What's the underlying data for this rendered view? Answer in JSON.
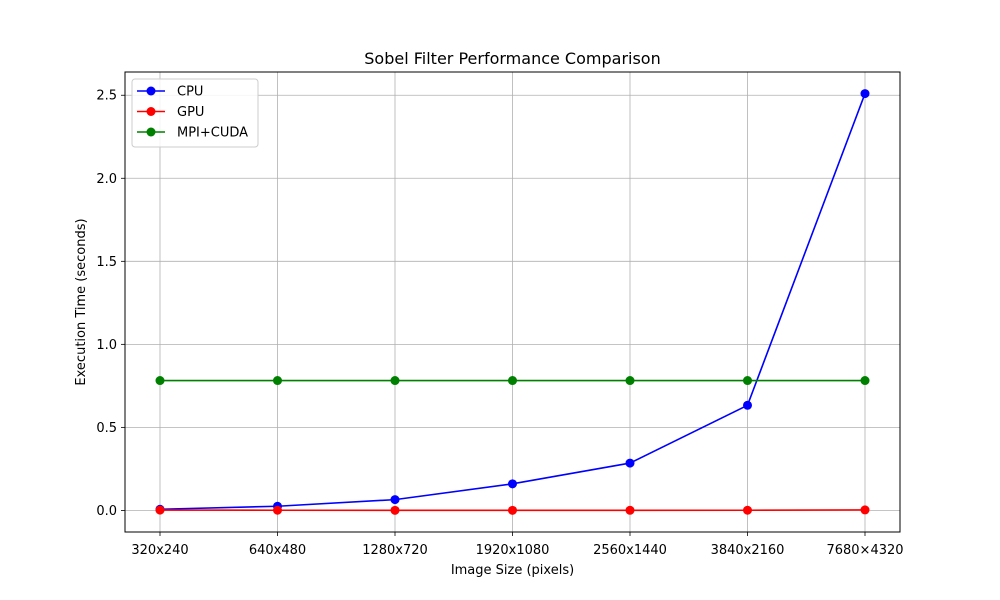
{
  "chart_data": {
    "type": "line",
    "title": "Sobel Filter Performance Comparison",
    "xlabel": "Image Size (pixels)",
    "ylabel": "Execution Time (seconds)",
    "categories": [
      "320x240",
      "640x480",
      "1280x720",
      "1920x1080",
      "2560x1440",
      "3840x2160",
      "7680×4320"
    ],
    "ylim": [
      -0.13,
      2.64
    ],
    "yticks": [
      0.0,
      0.5,
      1.0,
      1.5,
      2.0,
      2.5
    ],
    "ytick_labels": [
      "0.0",
      "0.5",
      "1.0",
      "1.5",
      "2.0",
      "2.5"
    ],
    "grid": true,
    "legend_position": "top-left",
    "series": [
      {
        "name": "CPU",
        "color": "#0000ff",
        "marker": "circle",
        "values": [
          0.007,
          0.025,
          0.065,
          0.16,
          0.285,
          0.633,
          2.51
        ]
      },
      {
        "name": "GPU",
        "color": "#ff0000",
        "marker": "circle",
        "values": [
          0.002,
          0.001,
          0.0005,
          0.0005,
          0.0007,
          0.001,
          0.003
        ]
      },
      {
        "name": "MPI+CUDA",
        "color": "#008000",
        "marker": "circle",
        "values": [
          0.782,
          0.782,
          0.782,
          0.782,
          0.782,
          0.782,
          0.782
        ]
      }
    ]
  }
}
